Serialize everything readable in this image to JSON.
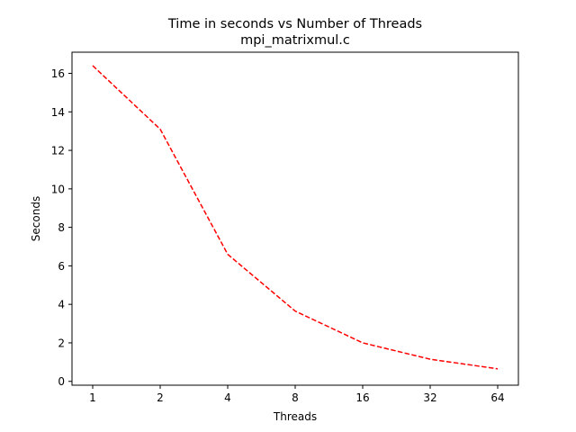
{
  "chart_data": {
    "type": "line",
    "title": "Time in seconds vs Number of Threads",
    "subtitle": "mpi_matrixmul.c",
    "xlabel": "Threads",
    "ylabel": "Seconds",
    "x_scale": "log2",
    "x": [
      1,
      2,
      4,
      8,
      16,
      32,
      64
    ],
    "x_tick_labels": [
      "1",
      "2",
      "4",
      "8",
      "16",
      "32",
      "64"
    ],
    "y_ticks": [
      0,
      2,
      4,
      6,
      8,
      10,
      12,
      14,
      16
    ],
    "ylim": [
      -0.2,
      17.1
    ],
    "grid": false,
    "series": [
      {
        "color": "#ff0000",
        "line_style": "dashed",
        "values": [
          16.4,
          13.1,
          6.6,
          3.65,
          2.0,
          1.15,
          0.65
        ]
      }
    ]
  }
}
